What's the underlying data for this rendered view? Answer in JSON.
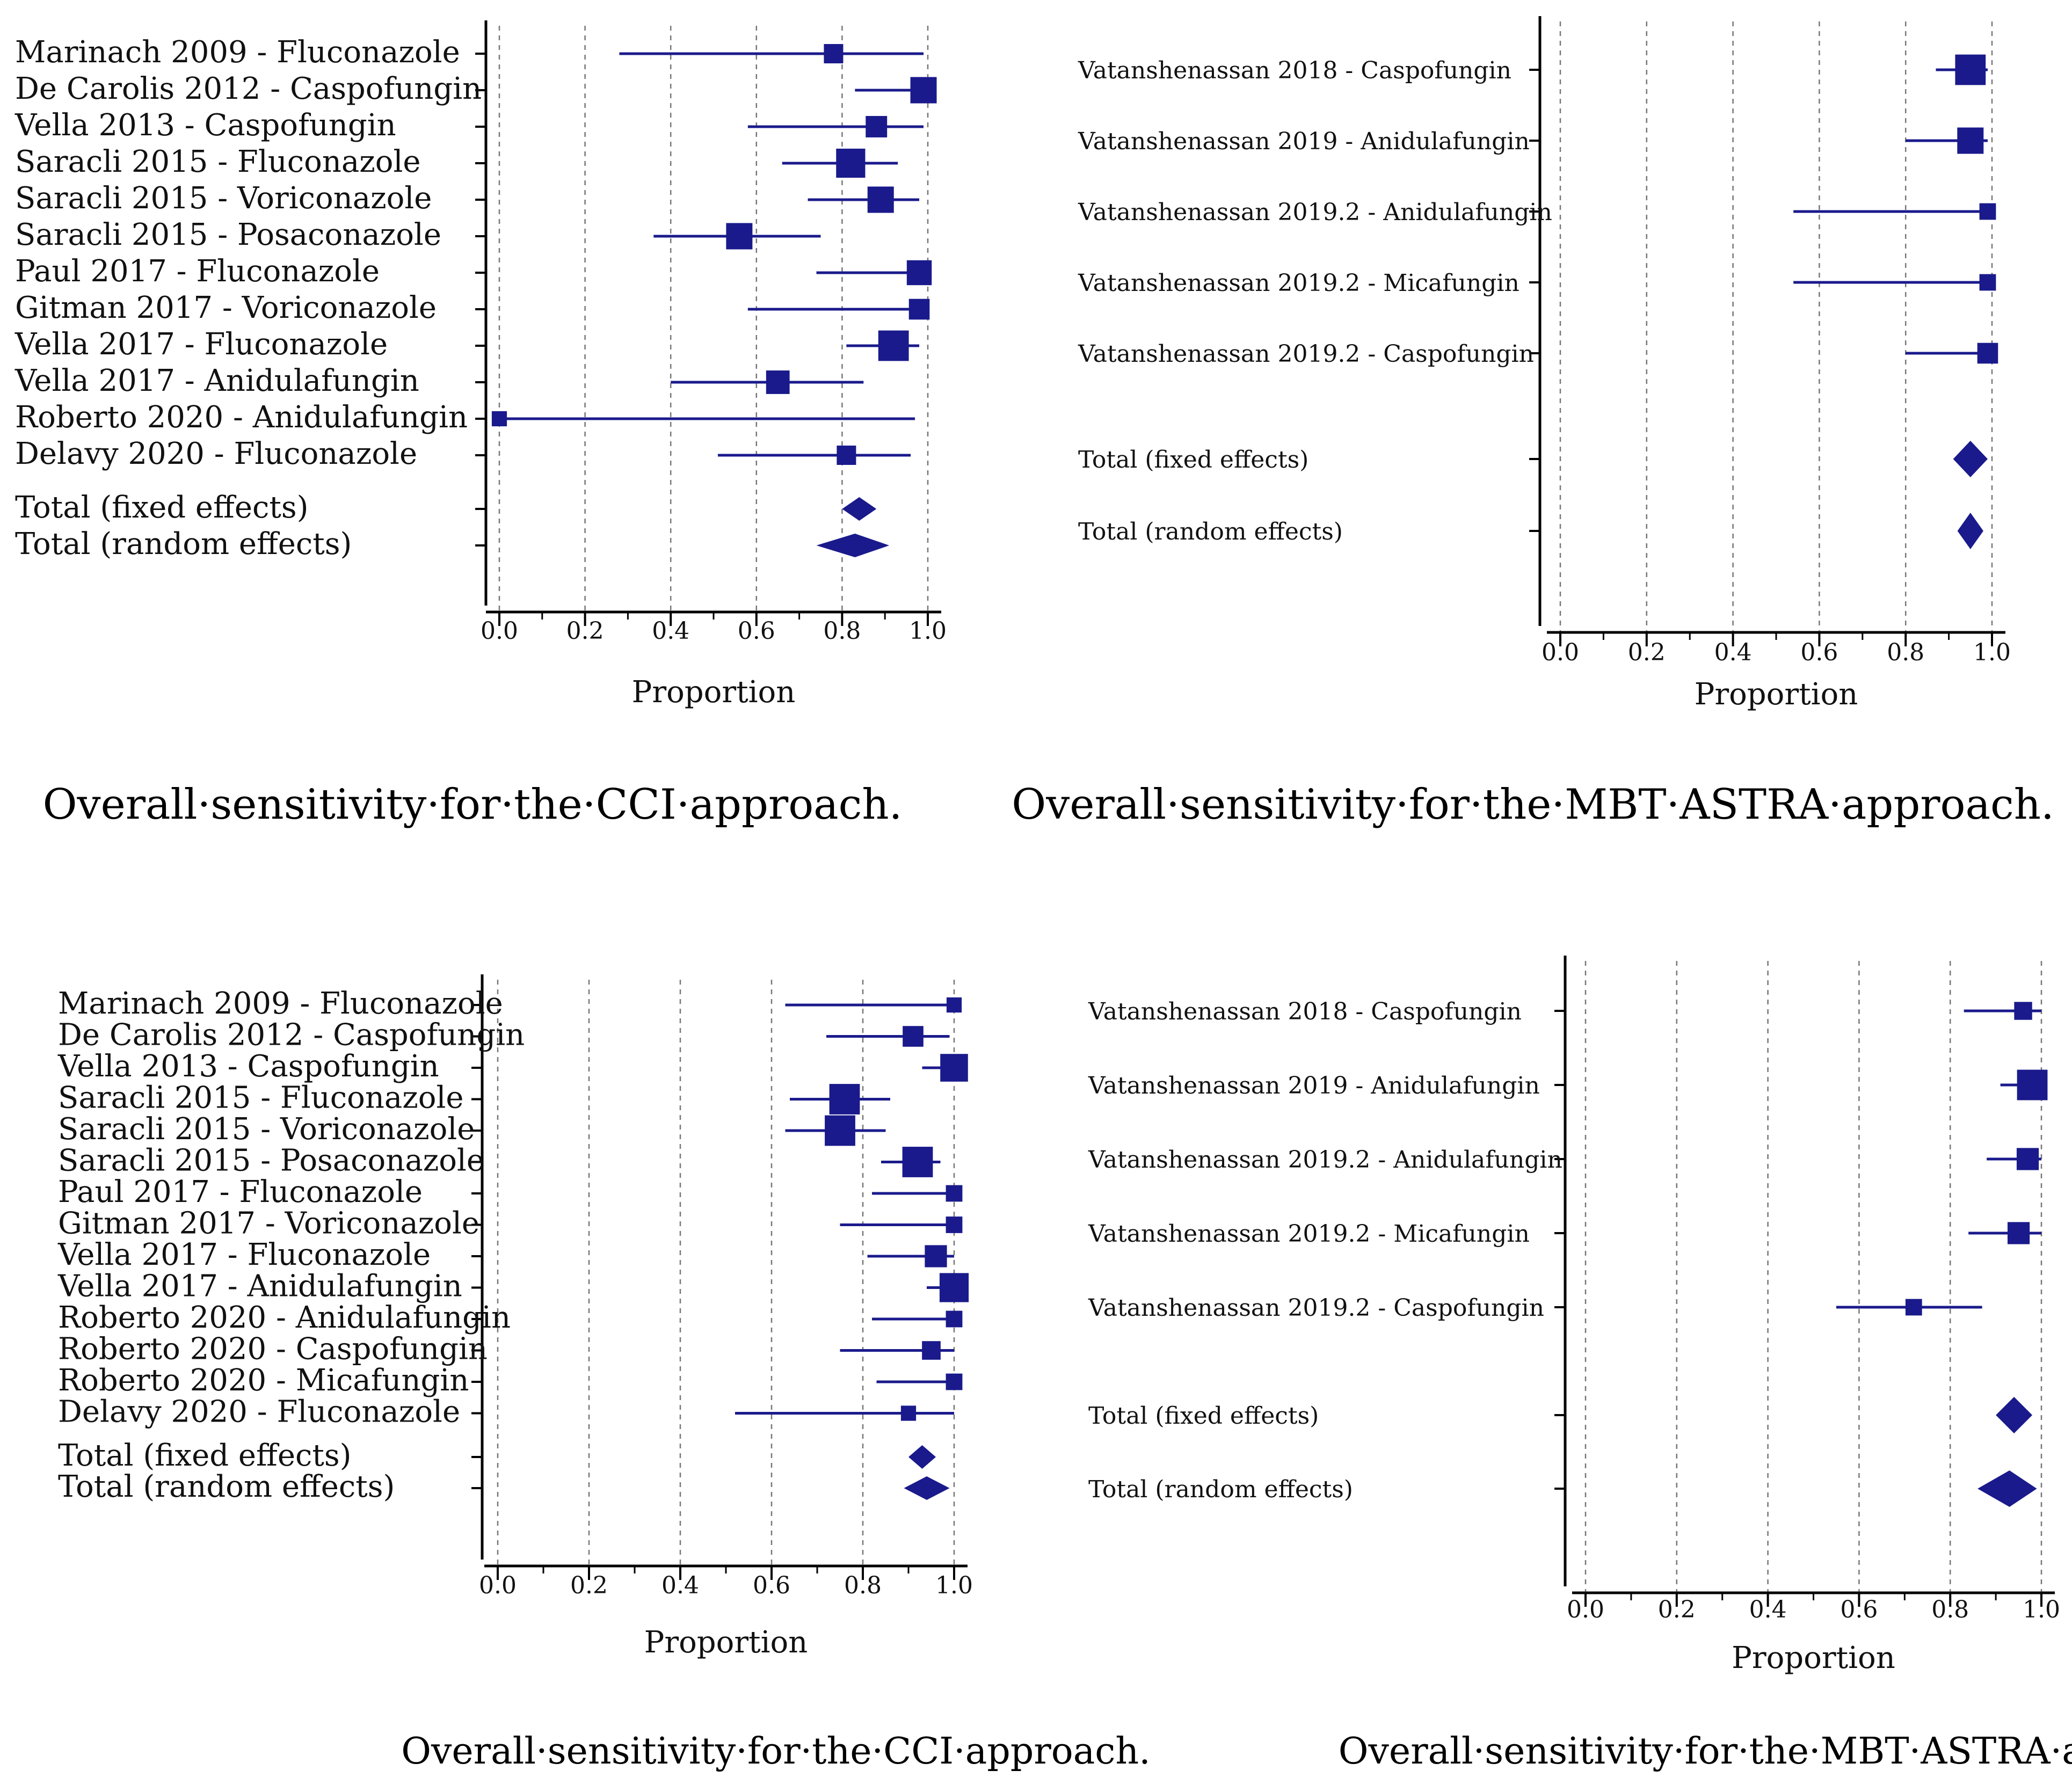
{
  "colors": {
    "mark": "#1a1a8c",
    "axis": "#000000",
    "grid": "#777777"
  },
  "chart_data": [
    {
      "type": "forest",
      "title": "Overall·sensitivity·for·the·CCI·approach.",
      "xlabel": "Proportion",
      "xlim": [
        0,
        1
      ],
      "ticks": [
        "0.0",
        "0.2",
        "0.4",
        "0.6",
        "0.8",
        "1.0"
      ],
      "studies": [
        {
          "label": "Marinach 2009 - Fluconazole",
          "est": 0.78,
          "lo": 0.28,
          "hi": 0.99,
          "weight": 2
        },
        {
          "label": "De Carolis 2012 - Caspofungin",
          "est": 0.99,
          "lo": 0.83,
          "hi": 1.0,
          "weight": 3
        },
        {
          "label": "Vella 2013 - Caspofungin",
          "est": 0.88,
          "lo": 0.58,
          "hi": 0.99,
          "weight": 2.3
        },
        {
          "label": "Saracli 2015 - Fluconazole",
          "est": 0.82,
          "lo": 0.66,
          "hi": 0.93,
          "weight": 3.4
        },
        {
          "label": "Saracli 2015 - Voriconazole",
          "est": 0.89,
          "lo": 0.72,
          "hi": 0.98,
          "weight": 3
        },
        {
          "label": "Saracli 2015 - Posaconazole",
          "est": 0.56,
          "lo": 0.36,
          "hi": 0.75,
          "weight": 3
        },
        {
          "label": "Paul 2017 - Fluconazole",
          "est": 0.98,
          "lo": 0.74,
          "hi": 1.0,
          "weight": 2.8
        },
        {
          "label": "Gitman 2017 - Voriconazole",
          "est": 0.98,
          "lo": 0.58,
          "hi": 1.0,
          "weight": 2.2
        },
        {
          "label": "Vella 2017 - Fluconazole",
          "est": 0.92,
          "lo": 0.81,
          "hi": 0.98,
          "weight": 3.6
        },
        {
          "label": "Vella 2017 - Anidulafungin",
          "est": 0.65,
          "lo": 0.4,
          "hi": 0.85,
          "weight": 2.6
        },
        {
          "label": "Roberto 2020 - Anidulafungin",
          "est": 0.0,
          "lo": 0.0,
          "hi": 0.97,
          "weight": 1.4
        },
        {
          "label": "Delavy 2020 - Fluconazole",
          "est": 0.81,
          "lo": 0.51,
          "hi": 0.96,
          "weight": 2
        }
      ],
      "totals": [
        {
          "label": "Total (fixed effects)",
          "est": 0.84,
          "lo": 0.8,
          "hi": 0.88
        },
        {
          "label": "Total (random effects)",
          "est": 0.83,
          "lo": 0.74,
          "hi": 0.91
        }
      ]
    },
    {
      "type": "forest",
      "title": "Overall·sensitivity·for·the·MBT·ASTRA·approach.",
      "xlabel": "Proportion",
      "xlim": [
        0,
        1
      ],
      "ticks": [
        "0.0",
        "0.2",
        "0.4",
        "0.6",
        "0.8",
        "1.0"
      ],
      "studies": [
        {
          "label": "Vatanshenassan 2018 - Caspofungin",
          "est": 0.95,
          "lo": 0.87,
          "hi": 0.99,
          "weight": 3.6
        },
        {
          "label": "Vatanshenassan 2019 - Anidulafungin",
          "est": 0.95,
          "lo": 0.8,
          "hi": 0.99,
          "weight": 3
        },
        {
          "label": "Vatanshenassan 2019.2 - Anidulafungin",
          "est": 0.99,
          "lo": 0.54,
          "hi": 1.0,
          "weight": 1.6
        },
        {
          "label": "Vatanshenassan 2019.2 - Micafungin",
          "est": 0.99,
          "lo": 0.54,
          "hi": 1.0,
          "weight": 1.6
        },
        {
          "label": "Vatanshenassan 2019.2 - Caspofungin",
          "est": 0.99,
          "lo": 0.8,
          "hi": 1.0,
          "weight": 2.2
        }
      ],
      "totals": [
        {
          "label": "Total (fixed effects)",
          "est": 0.95,
          "lo": 0.91,
          "hi": 0.99
        },
        {
          "label": "Total (random effects)",
          "est": 0.95,
          "lo": 0.92,
          "hi": 0.98
        }
      ]
    },
    {
      "type": "forest",
      "title": "Overall·sensitivity·for·the·CCI·approach.",
      "xlabel": "Proportion",
      "xlim": [
        0,
        1
      ],
      "ticks": [
        "0.0",
        "0.2",
        "0.4",
        "0.6",
        "0.8",
        "1.0"
      ],
      "studies": [
        {
          "label": "Marinach 2009 - Fluconazole",
          "est": 1.0,
          "lo": 0.63,
          "hi": 1.0,
          "weight": 1.4
        },
        {
          "label": "De Carolis 2012 - Caspofungin",
          "est": 0.91,
          "lo": 0.72,
          "hi": 0.99,
          "weight": 2.2
        },
        {
          "label": "Vella 2013 - Caspofungin",
          "est": 1.0,
          "lo": 0.93,
          "hi": 1.0,
          "weight": 3.2
        },
        {
          "label": "Saracli 2015 - Fluconazole",
          "est": 0.76,
          "lo": 0.64,
          "hi": 0.86,
          "weight": 3.6
        },
        {
          "label": "Saracli 2015 - Voriconazole",
          "est": 0.75,
          "lo": 0.63,
          "hi": 0.85,
          "weight": 3.6
        },
        {
          "label": "Saracli 2015 - Posaconazole",
          "est": 0.92,
          "lo": 0.84,
          "hi": 0.97,
          "weight": 3.6
        },
        {
          "label": "Paul 2017 - Fluconazole",
          "est": 1.0,
          "lo": 0.82,
          "hi": 1.0,
          "weight": 1.6
        },
        {
          "label": "Gitman 2017 - Voriconazole",
          "est": 1.0,
          "lo": 0.75,
          "hi": 1.0,
          "weight": 1.6
        },
        {
          "label": "Vella 2017 - Fluconazole",
          "est": 0.96,
          "lo": 0.81,
          "hi": 1.0,
          "weight": 2.4
        },
        {
          "label": "Vella 2017 - Anidulafungin",
          "est": 1.0,
          "lo": 0.94,
          "hi": 1.0,
          "weight": 3.4
        },
        {
          "label": "Roberto 2020 - Anidulafungin",
          "est": 1.0,
          "lo": 0.82,
          "hi": 1.0,
          "weight": 1.6
        },
        {
          "label": "Roberto 2020 - Caspofungin",
          "est": 0.95,
          "lo": 0.75,
          "hi": 1.0,
          "weight": 1.9
        },
        {
          "label": "Roberto 2020 - Micafungin",
          "est": 1.0,
          "lo": 0.83,
          "hi": 1.0,
          "weight": 1.6
        },
        {
          "label": "Delavy 2020 - Fluconazole",
          "est": 0.9,
          "lo": 0.52,
          "hi": 1.0,
          "weight": 1.4
        }
      ],
      "totals": [
        {
          "label": "Total (fixed effects)",
          "est": 0.93,
          "lo": 0.9,
          "hi": 0.96
        },
        {
          "label": "Total (random effects)",
          "est": 0.94,
          "lo": 0.89,
          "hi": 0.99
        }
      ]
    },
    {
      "type": "forest",
      "title": "Overall·sensitivity·for·the·MBT·ASTRA·approach.",
      "xlabel": "Proportion",
      "xlim": [
        0,
        1
      ],
      "ticks": [
        "0.0",
        "0.2",
        "0.4",
        "0.6",
        "0.8",
        "1.0"
      ],
      "studies": [
        {
          "label": "Vatanshenassan 2018 - Caspofungin",
          "est": 0.96,
          "lo": 0.83,
          "hi": 1.0,
          "weight": 1.8
        },
        {
          "label": "Vatanshenassan 2019 - Anidulafungin",
          "est": 0.98,
          "lo": 0.91,
          "hi": 1.0,
          "weight": 3.6
        },
        {
          "label": "Vatanshenassan 2019.2 - Anidulafungin",
          "est": 0.97,
          "lo": 0.88,
          "hi": 1.0,
          "weight": 2.4
        },
        {
          "label": "Vatanshenassan 2019.2 - Micafungin",
          "est": 0.95,
          "lo": 0.84,
          "hi": 1.0,
          "weight": 2.4
        },
        {
          "label": "Vatanshenassan 2019.2 - Caspofungin",
          "est": 0.72,
          "lo": 0.55,
          "hi": 0.87,
          "weight": 1.6
        }
      ],
      "totals": [
        {
          "label": "Total (fixed effects)",
          "est": 0.94,
          "lo": 0.9,
          "hi": 0.98
        },
        {
          "label": "Total (random effects)",
          "est": 0.93,
          "lo": 0.86,
          "hi": 0.99
        }
      ]
    }
  ]
}
